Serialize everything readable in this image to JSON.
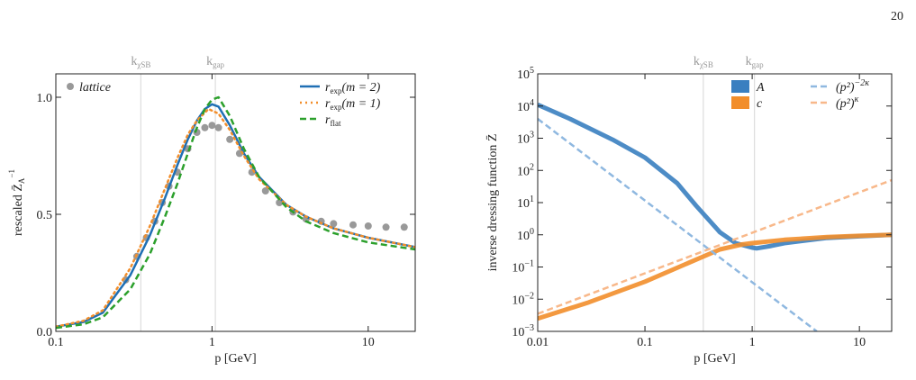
{
  "page_number": "20",
  "chart_data": [
    {
      "type": "line",
      "xlog": true,
      "ylog": false,
      "xlabel": "p [GeV]",
      "ylabel": "rescaled Z̄",
      "ylabel_sub": "A",
      "ylabel_sup": "−1",
      "xlim": [
        0.1,
        20
      ],
      "ylim": [
        0,
        1.1
      ],
      "xticks": [
        0.1,
        1,
        10
      ],
      "yticks": [
        {
          "value": 0,
          "label": "0.0"
        },
        {
          "value": 0.5,
          "label": "0.5"
        },
        {
          "value": 1,
          "label": "1.0"
        }
      ],
      "vlines": [
        {
          "x": 0.35,
          "text": "k",
          "sub": "χSB"
        },
        {
          "x": 1.05,
          "text": "k",
          "sub": "gap"
        }
      ],
      "legend_columns": 1,
      "series": [
        {
          "name": "lattice",
          "style": "markers",
          "color": "#999999",
          "legend": "upper left",
          "x": [
            0.28,
            0.33,
            0.38,
            0.43,
            0.48,
            0.53,
            0.6,
            0.7,
            0.8,
            0.9,
            1.0,
            1.1,
            1.3,
            1.5,
            1.8,
            2.2,
            2.7,
            3.3,
            4,
            5,
            6,
            8,
            10,
            13,
            17
          ],
          "values": [
            0.22,
            0.32,
            0.4,
            0.47,
            0.55,
            0.62,
            0.68,
            0.78,
            0.85,
            0.87,
            0.88,
            0.87,
            0.82,
            0.76,
            0.68,
            0.6,
            0.55,
            0.51,
            0.48,
            0.47,
            0.46,
            0.455,
            0.45,
            0.445,
            0.445
          ]
        },
        {
          "name": "r",
          "name_sub": "exp",
          "name_tail": "(m = 2)",
          "style": "solid",
          "color": "#1f6fb4",
          "legend": "upper right",
          "x": [
            0.1,
            0.15,
            0.2,
            0.3,
            0.4,
            0.5,
            0.6,
            0.7,
            0.8,
            0.9,
            1.0,
            1.1,
            1.3,
            1.6,
            2,
            3,
            4,
            6,
            10,
            20
          ],
          "values": [
            0.02,
            0.04,
            0.08,
            0.24,
            0.41,
            0.57,
            0.71,
            0.82,
            0.9,
            0.95,
            0.97,
            0.96,
            0.88,
            0.76,
            0.66,
            0.54,
            0.49,
            0.44,
            0.4,
            0.36
          ]
        },
        {
          "name": "r",
          "name_sub": "exp",
          "name_tail": "(m = 1)",
          "style": "dotted",
          "color": "#f28e2b",
          "legend": "upper right",
          "x": [
            0.1,
            0.15,
            0.2,
            0.3,
            0.4,
            0.5,
            0.6,
            0.7,
            0.8,
            0.95,
            1.1,
            1.3,
            1.6,
            2,
            3,
            4,
            6,
            10,
            20
          ],
          "values": [
            0.02,
            0.045,
            0.09,
            0.27,
            0.45,
            0.61,
            0.74,
            0.84,
            0.9,
            0.95,
            0.93,
            0.86,
            0.75,
            0.65,
            0.54,
            0.49,
            0.44,
            0.4,
            0.36
          ]
        },
        {
          "name": "r",
          "name_sub": "flat",
          "name_tail": "",
          "style": "dashed",
          "color": "#2ca02c",
          "legend": "upper right",
          "x": [
            0.1,
            0.15,
            0.2,
            0.3,
            0.4,
            0.5,
            0.6,
            0.7,
            0.8,
            0.9,
            1.0,
            1.1,
            1.3,
            1.6,
            2,
            3,
            4,
            6,
            10,
            20
          ],
          "values": [
            0.015,
            0.03,
            0.06,
            0.18,
            0.33,
            0.49,
            0.63,
            0.76,
            0.87,
            0.95,
            0.99,
            1.0,
            0.92,
            0.78,
            0.66,
            0.53,
            0.47,
            0.42,
            0.38,
            0.35
          ]
        }
      ]
    },
    {
      "type": "line",
      "xlog": true,
      "ylog": true,
      "xlabel": "p [GeV]",
      "ylabel": "inverse dressing function Z̄",
      "ylabel_sub": "",
      "ylabel_sup": "",
      "xlim": [
        0.01,
        20
      ],
      "ylim": [
        0.001,
        100000
      ],
      "xticks": [
        0.01,
        0.1,
        1,
        10
      ],
      "yticks": [
        {
          "value": 0.001,
          "label": "10",
          "exponent": "−3"
        },
        {
          "value": 0.01,
          "label": "10",
          "exponent": "−2"
        },
        {
          "value": 0.1,
          "label": "10",
          "exponent": "−1"
        },
        {
          "value": 1,
          "label": "10",
          "exponent": "0"
        },
        {
          "value": 10,
          "label": "10",
          "exponent": "1"
        },
        {
          "value": 100,
          "label": "10",
          "exponent": "2"
        },
        {
          "value": 1000,
          "label": "10",
          "exponent": "3"
        },
        {
          "value": 10000,
          "label": "10",
          "exponent": "4"
        },
        {
          "value": 100000,
          "label": "10",
          "exponent": "5"
        }
      ],
      "vlines": [
        {
          "x": 0.35,
          "text": "k",
          "sub": "χSB"
        },
        {
          "x": 1.05,
          "text": "k",
          "sub": "gap"
        }
      ],
      "legend_columns": 2,
      "series": [
        {
          "name": "A",
          "style": "band",
          "color": "#3a7fc0",
          "legend": "upper right",
          "x": [
            0.01,
            0.02,
            0.05,
            0.1,
            0.2,
            0.3,
            0.5,
            0.7,
            1,
            1.1,
            1.5,
            2,
            5,
            10,
            20
          ],
          "values": [
            11000,
            4000,
            900,
            250,
            40,
            8,
            1.2,
            0.55,
            0.4,
            0.38,
            0.45,
            0.55,
            0.8,
            0.9,
            1.0
          ]
        },
        {
          "name": "c",
          "style": "band",
          "color": "#f28e2b",
          "legend": "upper right",
          "x": [
            0.01,
            0.03,
            0.1,
            0.3,
            0.5,
            0.8,
            1,
            2,
            5,
            10,
            20
          ],
          "values": [
            0.0025,
            0.008,
            0.035,
            0.17,
            0.35,
            0.5,
            0.55,
            0.7,
            0.85,
            0.93,
            1.0
          ]
        },
        {
          "name": "(p²)",
          "name_sup": "−2κ",
          "style": "dashed",
          "color": "#8fb8e0",
          "legend": "upper right",
          "x": [
            0.01,
            4
          ],
          "values": [
            4000,
            0.001
          ]
        },
        {
          "name": "(p²)",
          "name_sup": "κ",
          "style": "dashed",
          "color": "#f8b88a",
          "legend": "upper right",
          "x": [
            0.01,
            20
          ],
          "values": [
            0.0035,
            50
          ]
        }
      ]
    }
  ]
}
